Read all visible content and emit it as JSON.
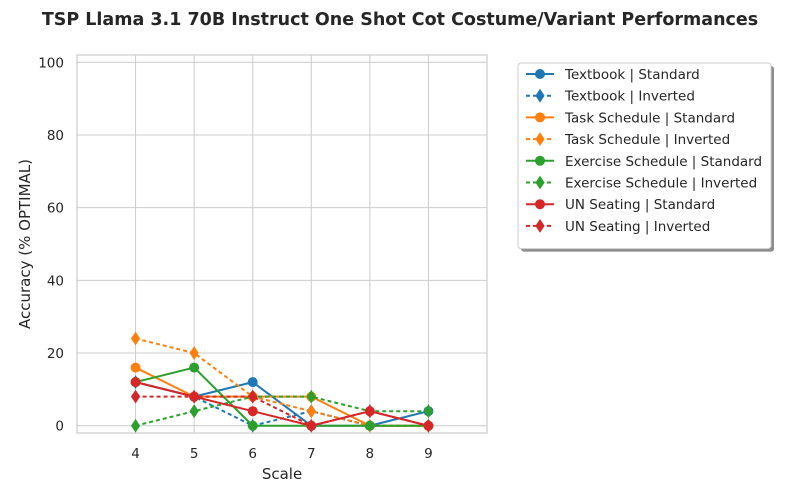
{
  "chart_data": {
    "type": "line",
    "title": "TSP Llama 3.1 70B Instruct One Shot Cot Costume/Variant Performances",
    "xlabel": "Scale",
    "ylabel": "Accuracy (% OPTIMAL)",
    "x": [
      4,
      5,
      6,
      7,
      8,
      9
    ],
    "xlim": [
      3,
      10
    ],
    "ylim": [
      -2,
      102
    ],
    "xticks": [
      "4",
      "5",
      "6",
      "7",
      "8",
      "9"
    ],
    "yticks": [
      "0",
      "20",
      "40",
      "60",
      "80",
      "100"
    ],
    "grid": true,
    "legend_position": "outside-top-right",
    "series": [
      {
        "name": "Textbook | Standard",
        "color": "#1f77b4",
        "style": "solid",
        "marker": "circle",
        "values": [
          12,
          8,
          12,
          0,
          0,
          4
        ]
      },
      {
        "name": "Textbook | Inverted",
        "color": "#1f77b4",
        "style": "dashed",
        "marker": "diamond",
        "values": [
          12,
          8,
          0,
          4,
          0,
          0
        ]
      },
      {
        "name": "Task Schedule | Standard",
        "color": "#ff7f0e",
        "style": "solid",
        "marker": "circle",
        "values": [
          16,
          8,
          8,
          8,
          0,
          0
        ]
      },
      {
        "name": "Task Schedule | Inverted",
        "color": "#ff7f0e",
        "style": "dashed",
        "marker": "diamond",
        "values": [
          24,
          20,
          8,
          4,
          0,
          0
        ]
      },
      {
        "name": "Exercise Schedule | Standard",
        "color": "#2ca02c",
        "style": "solid",
        "marker": "circle",
        "values": [
          12,
          16,
          0,
          0,
          0,
          0
        ]
      },
      {
        "name": "Exercise Schedule | Inverted",
        "color": "#2ca02c",
        "style": "dashed",
        "marker": "diamond",
        "values": [
          0,
          4,
          8,
          8,
          4,
          4
        ]
      },
      {
        "name": "UN Seating | Standard",
        "color": "#d62728",
        "style": "solid",
        "marker": "circle",
        "values": [
          12,
          8,
          4,
          0,
          4,
          0
        ]
      },
      {
        "name": "UN Seating | Inverted",
        "color": "#d62728",
        "style": "dashed",
        "marker": "diamond",
        "values": [
          8,
          8,
          8,
          0,
          4,
          0
        ]
      }
    ]
  }
}
